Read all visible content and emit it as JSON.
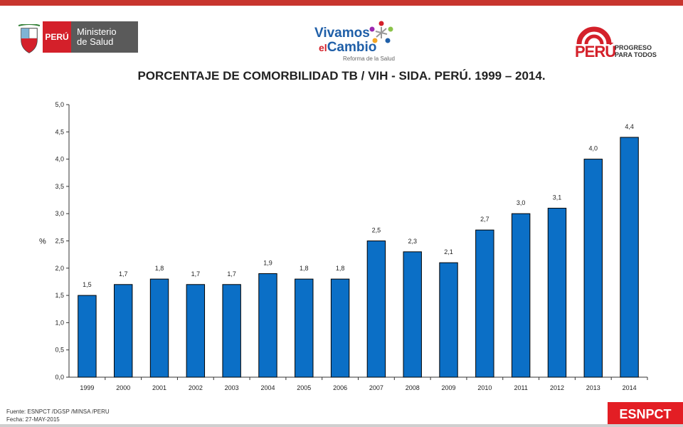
{
  "header": {
    "minsa_country": "PERÚ",
    "minsa_name_line1": "Ministerio",
    "minsa_name_line2": "de Salud",
    "vivamos_line1": "Vivamos",
    "vivamos_el": "el",
    "vivamos_line2": "Cambio",
    "vivamos_sub": "Reforma de la Salud",
    "peru_word": "PERÚ",
    "peru_tag_line1": "PROGRESO",
    "peru_tag_line2": "PARA TODOS"
  },
  "footer": {
    "source": "Fuente: ESNPCT /DGSP /MINSA /PERU",
    "date": "Fecha: 27-MAY-2015",
    "badge": "ESNPCT"
  },
  "colors": {
    "bar": "#0b6fc6",
    "top_bar": "#c8352e",
    "badge": "#e31e24"
  },
  "chart_data": {
    "type": "bar",
    "title": "PORCENTAJE  DE COMORBILIDAD TB / VIH - SIDA. PERÚ. 1999 – 2014.",
    "ylabel": "%",
    "xlabel": "",
    "ylim": [
      0,
      5
    ],
    "yticks": [
      "0,0",
      "0,5",
      "1,0",
      "1,5",
      "2,0",
      "2,5",
      "3,0",
      "3,5",
      "4,0",
      "4,5",
      "5,0"
    ],
    "categories": [
      "1999",
      "2000",
      "2001",
      "2002",
      "2003",
      "2004",
      "2005",
      "2006",
      "2007",
      "2008",
      "2009",
      "2010",
      "2011",
      "2012",
      "2013",
      "2014"
    ],
    "values": [
      1.5,
      1.7,
      1.8,
      1.7,
      1.7,
      1.9,
      1.8,
      1.8,
      2.5,
      2.3,
      2.1,
      2.7,
      3.0,
      3.1,
      4.0,
      4.4
    ],
    "value_labels": [
      "1,5",
      "1,7",
      "1,8",
      "1,7",
      "1,7",
      "1,9",
      "1,8",
      "1,8",
      "2,5",
      "2,3",
      "2,1",
      "2,7",
      "3,0",
      "3,1",
      "4,0",
      "4,4"
    ],
    "grid": false,
    "legend": "none"
  }
}
